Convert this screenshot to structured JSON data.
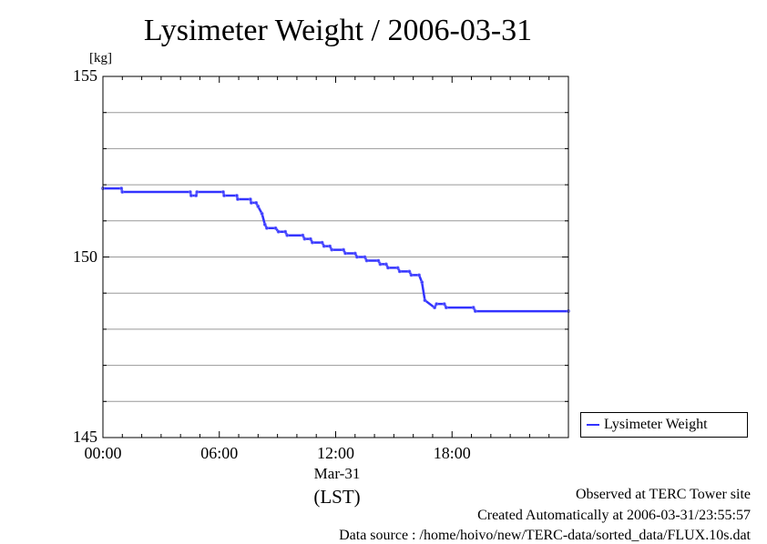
{
  "title": "Lysimeter Weight / 2006-03-31",
  "unit": "[kg]",
  "legend": {
    "label": "Lysimeter Weight"
  },
  "x_axis": {
    "date_label": "Mar-31",
    "timezone": "(LST)"
  },
  "footer": {
    "line1": "Observed at TERC Tower site",
    "line2": "Created Automatically at 2006-03-31/23:55:57",
    "line3": "Data source : /home/hoivo/new/TERC-data/sorted_data/FLUX.10s.dat"
  },
  "chart_data": {
    "type": "line",
    "title": "Lysimeter Weight / 2006-03-31",
    "ylabel": "[kg]",
    "xlabel": "(LST)",
    "ylim": [
      145,
      155
    ],
    "xlim": [
      0,
      24
    ],
    "yticks": [
      "145",
      "150",
      "155"
    ],
    "xticks": [
      "00:00",
      "06:00",
      "12:00",
      "18:00"
    ],
    "xtick_values": [
      0,
      6,
      12,
      18
    ],
    "grid": true,
    "legend_position": "bottom-right outside",
    "colors": {
      "series": "#3333ff",
      "grid": "#999999"
    },
    "series": [
      {
        "name": "Lysimeter Weight",
        "x": [
          0.0,
          0.95,
          1.0,
          4.5,
          4.55,
          4.8,
          4.85,
          6.2,
          6.25,
          6.9,
          6.95,
          7.6,
          7.65,
          7.9,
          8.0,
          8.2,
          8.35,
          8.45,
          8.9,
          9.05,
          9.4,
          9.5,
          10.3,
          10.4,
          10.7,
          10.8,
          11.3,
          11.4,
          11.7,
          11.8,
          12.4,
          12.5,
          13.0,
          13.1,
          13.5,
          13.6,
          14.2,
          14.3,
          14.6,
          14.7,
          15.2,
          15.3,
          15.8,
          15.9,
          16.3,
          16.45,
          16.6,
          17.1,
          17.2,
          17.6,
          17.7,
          19.1,
          19.2,
          24.0
        ],
        "y": [
          151.9,
          151.9,
          151.8,
          151.8,
          151.7,
          151.7,
          151.8,
          151.8,
          151.7,
          151.7,
          151.6,
          151.6,
          151.5,
          151.5,
          151.4,
          151.2,
          150.9,
          150.8,
          150.8,
          150.7,
          150.7,
          150.6,
          150.6,
          150.5,
          150.5,
          150.4,
          150.4,
          150.3,
          150.3,
          150.2,
          150.2,
          150.1,
          150.1,
          150.0,
          150.0,
          149.9,
          149.9,
          149.8,
          149.8,
          149.7,
          149.7,
          149.6,
          149.6,
          149.5,
          149.5,
          149.3,
          148.8,
          148.6,
          148.7,
          148.7,
          148.6,
          148.6,
          148.5,
          148.5
        ]
      }
    ]
  }
}
